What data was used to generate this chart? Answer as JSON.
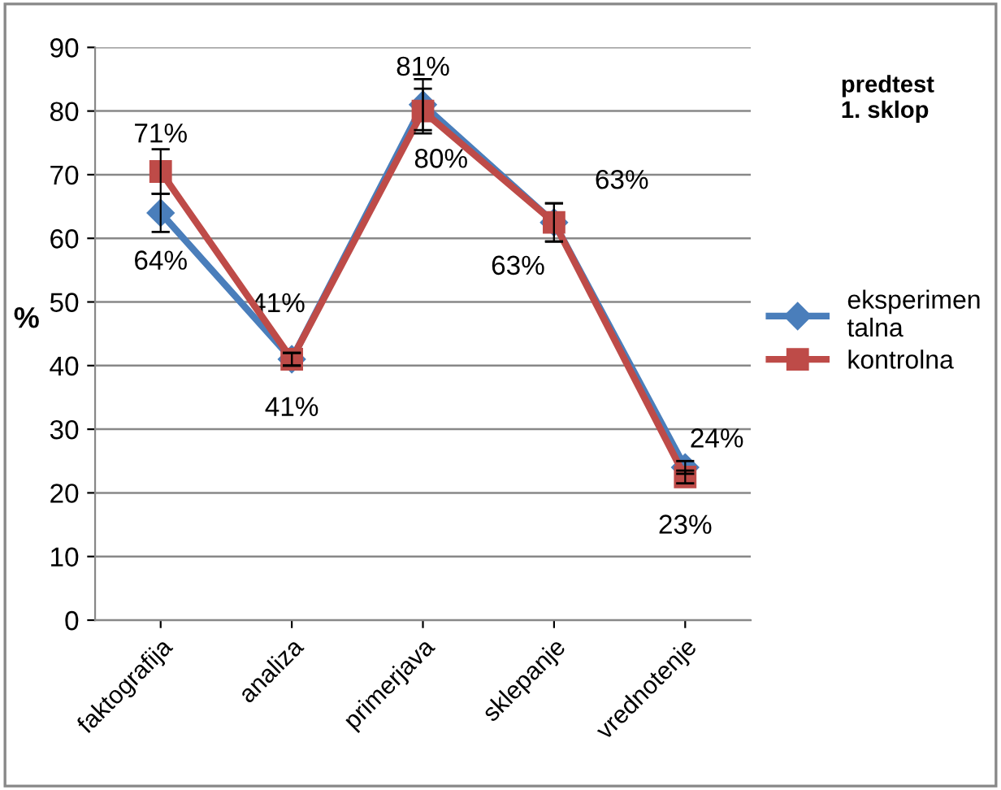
{
  "chart_data": {
    "type": "line",
    "title": "predtest\n1. sklop",
    "ylabel": "%",
    "categories": [
      "faktografija",
      "analiza",
      "primerjava",
      "sklepanje",
      "vrednotenje"
    ],
    "series": [
      {
        "name": "eksperimen\ntalna",
        "color": "#4a7ebb",
        "marker": "diamond",
        "values": [
          64,
          41,
          81,
          62.5,
          24
        ],
        "errors": [
          3,
          1,
          4,
          3,
          1
        ],
        "value_labels": [
          "64%",
          "41%",
          "81%",
          "63%",
          "24%"
        ]
      },
      {
        "name": "kontrolna",
        "color": "#be4b48",
        "marker": "square",
        "values": [
          70.5,
          41,
          80,
          62.5,
          22.5
        ],
        "errors": [
          3.5,
          1,
          3.5,
          3,
          1
        ],
        "value_labels": [
          "71%",
          "41%",
          "80%",
          "63%",
          "23%"
        ]
      }
    ],
    "ylim": [
      0,
      90
    ],
    "yticks": [
      0,
      10,
      20,
      30,
      40,
      50,
      60,
      70,
      80,
      90
    ],
    "grid": "y",
    "legend": "right",
    "line_style": "solid"
  }
}
